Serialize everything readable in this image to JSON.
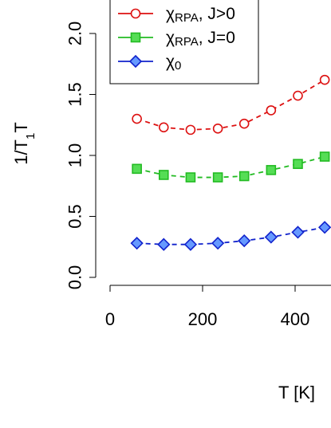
{
  "chart_data": {
    "type": "line",
    "xlabel": "T [K]",
    "ylabel_main": "1/T",
    "ylabel_sub": "1",
    "ylabel_tail": "T",
    "x_ticks": [
      0,
      200,
      400
    ],
    "y_ticks": [
      0.0,
      0.5,
      1.0,
      1.5,
      2.0
    ],
    "y_tick_labels": [
      "0.0",
      "0.5",
      "1.0",
      "1.5",
      "2.0"
    ],
    "x_tick_labels": [
      "0",
      "200",
      "400"
    ],
    "x": [
      58,
      116,
      174,
      233,
      290,
      348,
      406,
      464
    ],
    "series": [
      {
        "name_main": "χ",
        "name_sub": "RPA",
        "name_tail": ", J>0",
        "color": "#dd1111",
        "fill": "#ffffff",
        "marker": "circle",
        "values": [
          1.3,
          1.23,
          1.21,
          1.22,
          1.26,
          1.37,
          1.49,
          1.62
        ]
      },
      {
        "name_main": "χ",
        "name_sub": "RPA",
        "name_tail": ", J=0",
        "color": "#22bb22",
        "fill": "#55dd55",
        "marker": "square",
        "values": [
          0.89,
          0.84,
          0.82,
          0.82,
          0.83,
          0.88,
          0.93,
          0.99
        ]
      },
      {
        "name_main": "χ",
        "name_sub": "0",
        "name_tail": "",
        "color": "#1122cc",
        "fill": "#6699ff",
        "marker": "diamond",
        "values": [
          0.28,
          0.27,
          0.27,
          0.28,
          0.3,
          0.33,
          0.37,
          0.41
        ]
      }
    ],
    "legend_position": "top-left",
    "grid": false
  }
}
